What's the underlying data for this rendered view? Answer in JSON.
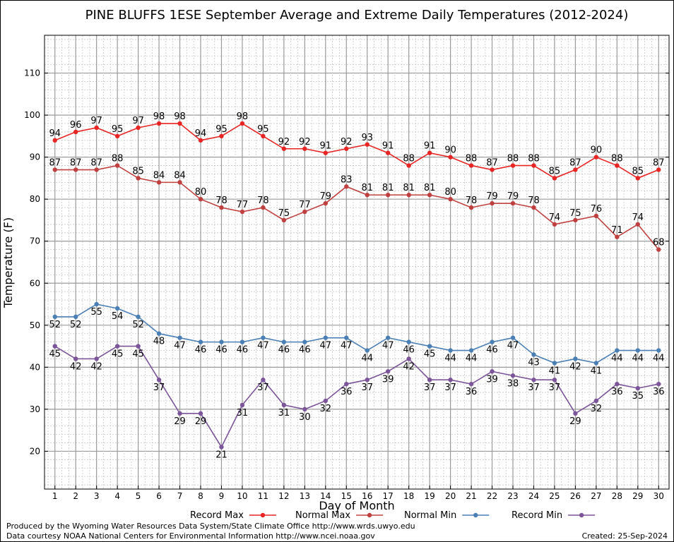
{
  "chart_data": {
    "type": "line",
    "title": "PINE BLUFFS 1ESE September Average and Extreme Daily Temperatures (2012-2024)",
    "xlabel": "Day of Month",
    "ylabel": "Temperature (F)",
    "xlim": [
      0.5,
      30.5
    ],
    "ylim": [
      11,
      119
    ],
    "ytick_labels": [
      "20",
      "30",
      "40",
      "50",
      "60",
      "70",
      "80",
      "90",
      "100",
      "110"
    ],
    "x": [
      1,
      2,
      3,
      4,
      5,
      6,
      7,
      8,
      9,
      10,
      11,
      12,
      13,
      14,
      15,
      16,
      17,
      18,
      19,
      20,
      21,
      22,
      23,
      24,
      25,
      26,
      27,
      28,
      29,
      30
    ],
    "xtick_labels": [
      "1",
      "2",
      "3",
      "4",
      "5",
      "6",
      "7",
      "8",
      "9",
      "10",
      "11",
      "12",
      "13",
      "14",
      "15",
      "16",
      "17",
      "18",
      "19",
      "20",
      "21",
      "22",
      "23",
      "24",
      "25",
      "26",
      "27",
      "28",
      "29",
      "30"
    ],
    "grid": true,
    "legend_position": "bottom",
    "series": [
      {
        "name": "Record Max",
        "color": "#e82424",
        "label_position": "above",
        "values": [
          94,
          96,
          97,
          95,
          97,
          98,
          98,
          94,
          95,
          98,
          95,
          92,
          92,
          91,
          92,
          93,
          91,
          88,
          91,
          90,
          88,
          87,
          88,
          88,
          85,
          87,
          90,
          88,
          85,
          87
        ]
      },
      {
        "name": "Normal Max",
        "color": "#c04040",
        "label_position": "above",
        "values": [
          87,
          87,
          87,
          88,
          85,
          84,
          84,
          80,
          78,
          77,
          78,
          75,
          77,
          79,
          83,
          81,
          81,
          81,
          81,
          80,
          78,
          79,
          79,
          78,
          74,
          75,
          76,
          71,
          74,
          68
        ]
      },
      {
        "name": "Normal Min",
        "color": "#4a7fb5",
        "label_position": "below",
        "values": [
          52,
          52,
          55,
          54,
          52,
          48,
          47,
          46,
          46,
          46,
          47,
          46,
          46,
          47,
          47,
          44,
          47,
          46,
          45,
          44,
          44,
          46,
          47,
          43,
          41,
          42,
          41,
          44,
          44,
          44
        ]
      },
      {
        "name": "Record Min",
        "color": "#7b5499",
        "label_position": "below",
        "values": [
          45,
          42,
          42,
          45,
          45,
          37,
          29,
          29,
          21,
          31,
          37,
          31,
          30,
          32,
          36,
          37,
          39,
          42,
          37,
          37,
          36,
          39,
          38,
          37,
          37,
          29,
          32,
          36,
          35,
          36
        ]
      }
    ]
  },
  "footer": {
    "produced_by": "Produced by the Wyoming Water Resources Data System/State Climate Office http://www.wrds.uwyo.edu",
    "data_courtesy": "Data courtesy NOAA National Centers for Environmental Information http://www.ncei.noaa.gov",
    "created": "Created:  25-Sep-2024"
  }
}
